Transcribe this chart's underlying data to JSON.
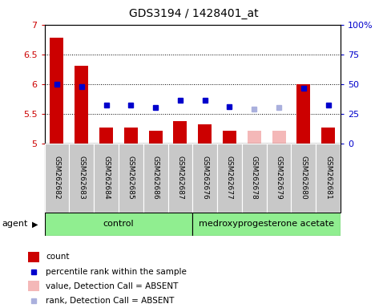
{
  "title": "GDS3194 / 1428401_at",
  "samples": [
    "GSM262682",
    "GSM262683",
    "GSM262684",
    "GSM262685",
    "GSM262686",
    "GSM262687",
    "GSM262676",
    "GSM262677",
    "GSM262678",
    "GSM262679",
    "GSM262680",
    "GSM262681"
  ],
  "bar_values": [
    6.78,
    6.3,
    5.27,
    5.27,
    5.21,
    5.37,
    5.32,
    5.21,
    5.21,
    5.21,
    6.0,
    5.27
  ],
  "bar_absent": [
    false,
    false,
    false,
    false,
    false,
    false,
    false,
    false,
    true,
    true,
    false,
    false
  ],
  "dot_values": [
    6.0,
    5.95,
    5.65,
    5.65,
    5.6,
    5.72,
    5.72,
    5.62,
    5.58,
    5.6,
    5.93,
    5.65
  ],
  "dot_absent": [
    false,
    false,
    false,
    false,
    false,
    false,
    false,
    false,
    true,
    true,
    false,
    false
  ],
  "ylim": [
    5.0,
    7.0
  ],
  "y2lim": [
    0,
    100
  ],
  "yticks": [
    5.0,
    5.5,
    6.0,
    6.5,
    7.0
  ],
  "ytick_labels": [
    "5",
    "5.5",
    "6",
    "6.5",
    "7"
  ],
  "y2ticks": [
    0,
    25,
    50,
    75,
    100
  ],
  "y2ticklabels": [
    "0",
    "25",
    "50",
    "75",
    "100%"
  ],
  "bar_color_present": "#cc0000",
  "bar_color_absent": "#f4b8b8",
  "dot_color_present": "#0000cc",
  "dot_color_absent": "#aab0dd",
  "group1_label": "control",
  "group2_label": "medroxyprogesterone acetate",
  "group1_count": 6,
  "group2_count": 6,
  "agent_label": "agent",
  "legend_items": [
    {
      "label": "count",
      "color": "#cc0000",
      "type": "bar"
    },
    {
      "label": "percentile rank within the sample",
      "color": "#0000cc",
      "type": "dot"
    },
    {
      "label": "value, Detection Call = ABSENT",
      "color": "#f4b8b8",
      "type": "bar"
    },
    {
      "label": "rank, Detection Call = ABSENT",
      "color": "#aab0dd",
      "type": "dot"
    }
  ],
  "label_bg_color": "#c8c8c8",
  "group_bg_color": "#90ee90",
  "plot_bg": "#ffffff",
  "bar_width": 0.55
}
